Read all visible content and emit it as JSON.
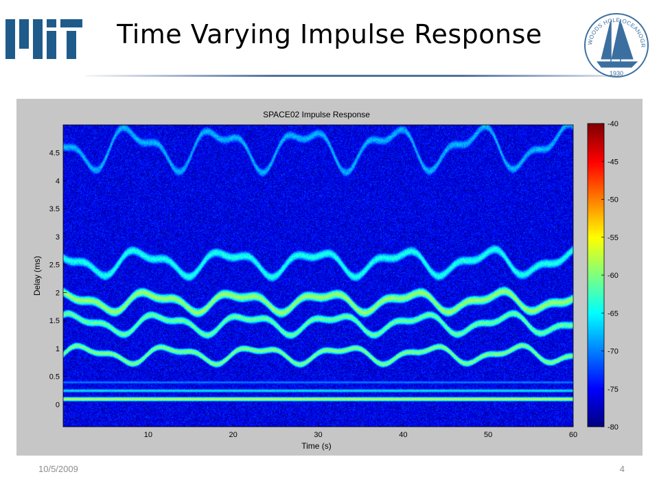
{
  "slide": {
    "title": "Time Varying Impulse Response",
    "date": "10/5/2009",
    "page_number": "4"
  },
  "logos": {
    "left": "mit-logo",
    "right": {
      "name": "whoi-logo",
      "text": "WOODS HOLE OCEANOGRAPHIC INSTITUTION",
      "year": "1930",
      "color": "#3b6fa0"
    }
  },
  "colors": {
    "mit_gray": "#8a8b8c",
    "mit_red": "#a31f34",
    "mit_blue": "#1f5b8a",
    "frame_bg": "#c6c6c6"
  },
  "chart_data": {
    "type": "heatmap",
    "title": "SPACE02 Impulse Response",
    "xlabel": "Time (s)",
    "ylabel": "Delay (ms)",
    "xlim": [
      0,
      60
    ],
    "ylim": [
      -0.4,
      5.0
    ],
    "x_ticks": [
      10,
      20,
      30,
      40,
      50,
      60
    ],
    "y_ticks": [
      0,
      0.5,
      1,
      1.5,
      2,
      2.5,
      3,
      3.5,
      4,
      4.5
    ],
    "colorbar": {
      "colormap": "jet",
      "range": [
        -80,
        -40
      ],
      "ticks": [
        -40,
        -45,
        -50,
        -55,
        -60,
        -65,
        -70,
        -75,
        -80
      ]
    },
    "background_level": -76,
    "steady_arrivals": [
      {
        "delay": 0.1,
        "level": -58
      },
      {
        "delay": 0.25,
        "level": -66
      },
      {
        "delay": 0.4,
        "level": -70
      }
    ],
    "arrival_paths": [
      {
        "base_delay": 0.9,
        "amplitude": 0.12,
        "level": -60
      },
      {
        "base_delay": 1.45,
        "amplitude": 0.14,
        "level": -61
      },
      {
        "base_delay": 1.85,
        "amplitude": 0.14,
        "level": -59
      },
      {
        "base_delay": 2.55,
        "amplitude": 0.18,
        "level": -64
      },
      {
        "base_delay": 4.6,
        "amplitude": 0.3,
        "level": -68
      }
    ]
  }
}
